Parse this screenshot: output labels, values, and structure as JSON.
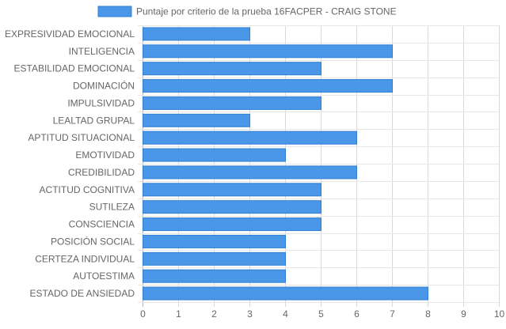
{
  "chart_data": {
    "type": "bar",
    "orientation": "horizontal",
    "categories": [
      "EXPRESIVIDAD EMOCIONAL",
      "INTELIGENCIA",
      "ESTABILIDAD EMOCIONAL",
      "DOMINACIÓN",
      "IMPULSIVIDAD",
      "LEALTAD GRUPAL",
      "APTITUD SITUACIONAL",
      "EMOTIVIDAD",
      "CREDIBILIDAD",
      "ACTITUD COGNITIVA",
      "SUTILEZA",
      "CONSCIENCIA",
      "POSICIÓN SOCIAL",
      "CERTEZA INDIVIDUAL",
      "AUTOESTIMA",
      "ESTADO DE ANSIEDAD"
    ],
    "series": [
      {
        "name": "Puntaje por criterio de la prueba 16FACPER - CRAIG STONE",
        "values": [
          3,
          7,
          5,
          7,
          5,
          3,
          6,
          4,
          6,
          5,
          5,
          5,
          4,
          4,
          4,
          8
        ],
        "color": "#4a97e8",
        "border_color": "#2f7fd4"
      }
    ],
    "xlim": [
      0,
      10
    ],
    "x_ticks": [
      "0",
      "1",
      "2",
      "3",
      "4",
      "5",
      "6",
      "7",
      "8",
      "9",
      "10"
    ],
    "grid": true,
    "legend_position": "top"
  }
}
